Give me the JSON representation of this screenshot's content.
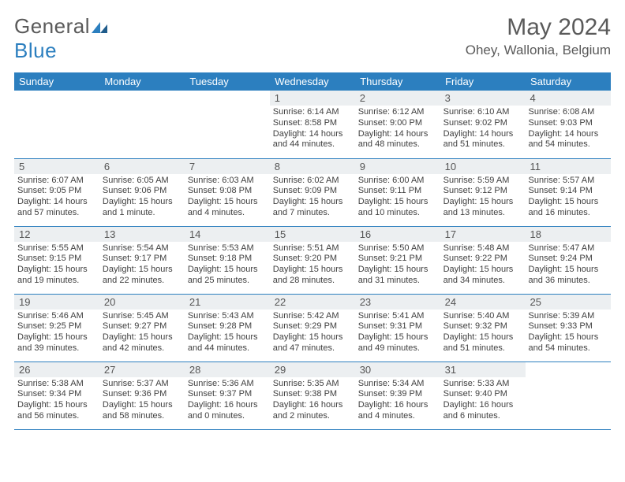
{
  "logo": {
    "word1": "General",
    "word2": "Blue",
    "brand_color": "#2c7fbf"
  },
  "title": "May 2024",
  "location": "Ohey, Wallonia, Belgium",
  "weekdays": [
    "Sunday",
    "Monday",
    "Tuesday",
    "Wednesday",
    "Thursday",
    "Friday",
    "Saturday"
  ],
  "header_bg": "#2c7fbf",
  "header_fg": "#ffffff",
  "daynum_bg": "#eceff1",
  "font_family": "Arial",
  "weeks": [
    [
      null,
      null,
      null,
      {
        "n": "1",
        "sr": "6:14 AM",
        "ss": "8:58 PM",
        "dl": "14 hours and 44 minutes."
      },
      {
        "n": "2",
        "sr": "6:12 AM",
        "ss": "9:00 PM",
        "dl": "14 hours and 48 minutes."
      },
      {
        "n": "3",
        "sr": "6:10 AM",
        "ss": "9:02 PM",
        "dl": "14 hours and 51 minutes."
      },
      {
        "n": "4",
        "sr": "6:08 AM",
        "ss": "9:03 PM",
        "dl": "14 hours and 54 minutes."
      }
    ],
    [
      {
        "n": "5",
        "sr": "6:07 AM",
        "ss": "9:05 PM",
        "dl": "14 hours and 57 minutes."
      },
      {
        "n": "6",
        "sr": "6:05 AM",
        "ss": "9:06 PM",
        "dl": "15 hours and 1 minute."
      },
      {
        "n": "7",
        "sr": "6:03 AM",
        "ss": "9:08 PM",
        "dl": "15 hours and 4 minutes."
      },
      {
        "n": "8",
        "sr": "6:02 AM",
        "ss": "9:09 PM",
        "dl": "15 hours and 7 minutes."
      },
      {
        "n": "9",
        "sr": "6:00 AM",
        "ss": "9:11 PM",
        "dl": "15 hours and 10 minutes."
      },
      {
        "n": "10",
        "sr": "5:59 AM",
        "ss": "9:12 PM",
        "dl": "15 hours and 13 minutes."
      },
      {
        "n": "11",
        "sr": "5:57 AM",
        "ss": "9:14 PM",
        "dl": "15 hours and 16 minutes."
      }
    ],
    [
      {
        "n": "12",
        "sr": "5:55 AM",
        "ss": "9:15 PM",
        "dl": "15 hours and 19 minutes."
      },
      {
        "n": "13",
        "sr": "5:54 AM",
        "ss": "9:17 PM",
        "dl": "15 hours and 22 minutes."
      },
      {
        "n": "14",
        "sr": "5:53 AM",
        "ss": "9:18 PM",
        "dl": "15 hours and 25 minutes."
      },
      {
        "n": "15",
        "sr": "5:51 AM",
        "ss": "9:20 PM",
        "dl": "15 hours and 28 minutes."
      },
      {
        "n": "16",
        "sr": "5:50 AM",
        "ss": "9:21 PM",
        "dl": "15 hours and 31 minutes."
      },
      {
        "n": "17",
        "sr": "5:48 AM",
        "ss": "9:22 PM",
        "dl": "15 hours and 34 minutes."
      },
      {
        "n": "18",
        "sr": "5:47 AM",
        "ss": "9:24 PM",
        "dl": "15 hours and 36 minutes."
      }
    ],
    [
      {
        "n": "19",
        "sr": "5:46 AM",
        "ss": "9:25 PM",
        "dl": "15 hours and 39 minutes."
      },
      {
        "n": "20",
        "sr": "5:45 AM",
        "ss": "9:27 PM",
        "dl": "15 hours and 42 minutes."
      },
      {
        "n": "21",
        "sr": "5:43 AM",
        "ss": "9:28 PM",
        "dl": "15 hours and 44 minutes."
      },
      {
        "n": "22",
        "sr": "5:42 AM",
        "ss": "9:29 PM",
        "dl": "15 hours and 47 minutes."
      },
      {
        "n": "23",
        "sr": "5:41 AM",
        "ss": "9:31 PM",
        "dl": "15 hours and 49 minutes."
      },
      {
        "n": "24",
        "sr": "5:40 AM",
        "ss": "9:32 PM",
        "dl": "15 hours and 51 minutes."
      },
      {
        "n": "25",
        "sr": "5:39 AM",
        "ss": "9:33 PM",
        "dl": "15 hours and 54 minutes."
      }
    ],
    [
      {
        "n": "26",
        "sr": "5:38 AM",
        "ss": "9:34 PM",
        "dl": "15 hours and 56 minutes."
      },
      {
        "n": "27",
        "sr": "5:37 AM",
        "ss": "9:36 PM",
        "dl": "15 hours and 58 minutes."
      },
      {
        "n": "28",
        "sr": "5:36 AM",
        "ss": "9:37 PM",
        "dl": "16 hours and 0 minutes."
      },
      {
        "n": "29",
        "sr": "5:35 AM",
        "ss": "9:38 PM",
        "dl": "16 hours and 2 minutes."
      },
      {
        "n": "30",
        "sr": "5:34 AM",
        "ss": "9:39 PM",
        "dl": "16 hours and 4 minutes."
      },
      {
        "n": "31",
        "sr": "5:33 AM",
        "ss": "9:40 PM",
        "dl": "16 hours and 6 minutes."
      },
      null
    ]
  ],
  "labels": {
    "sunrise": "Sunrise:",
    "sunset": "Sunset:",
    "daylight": "Daylight:"
  }
}
